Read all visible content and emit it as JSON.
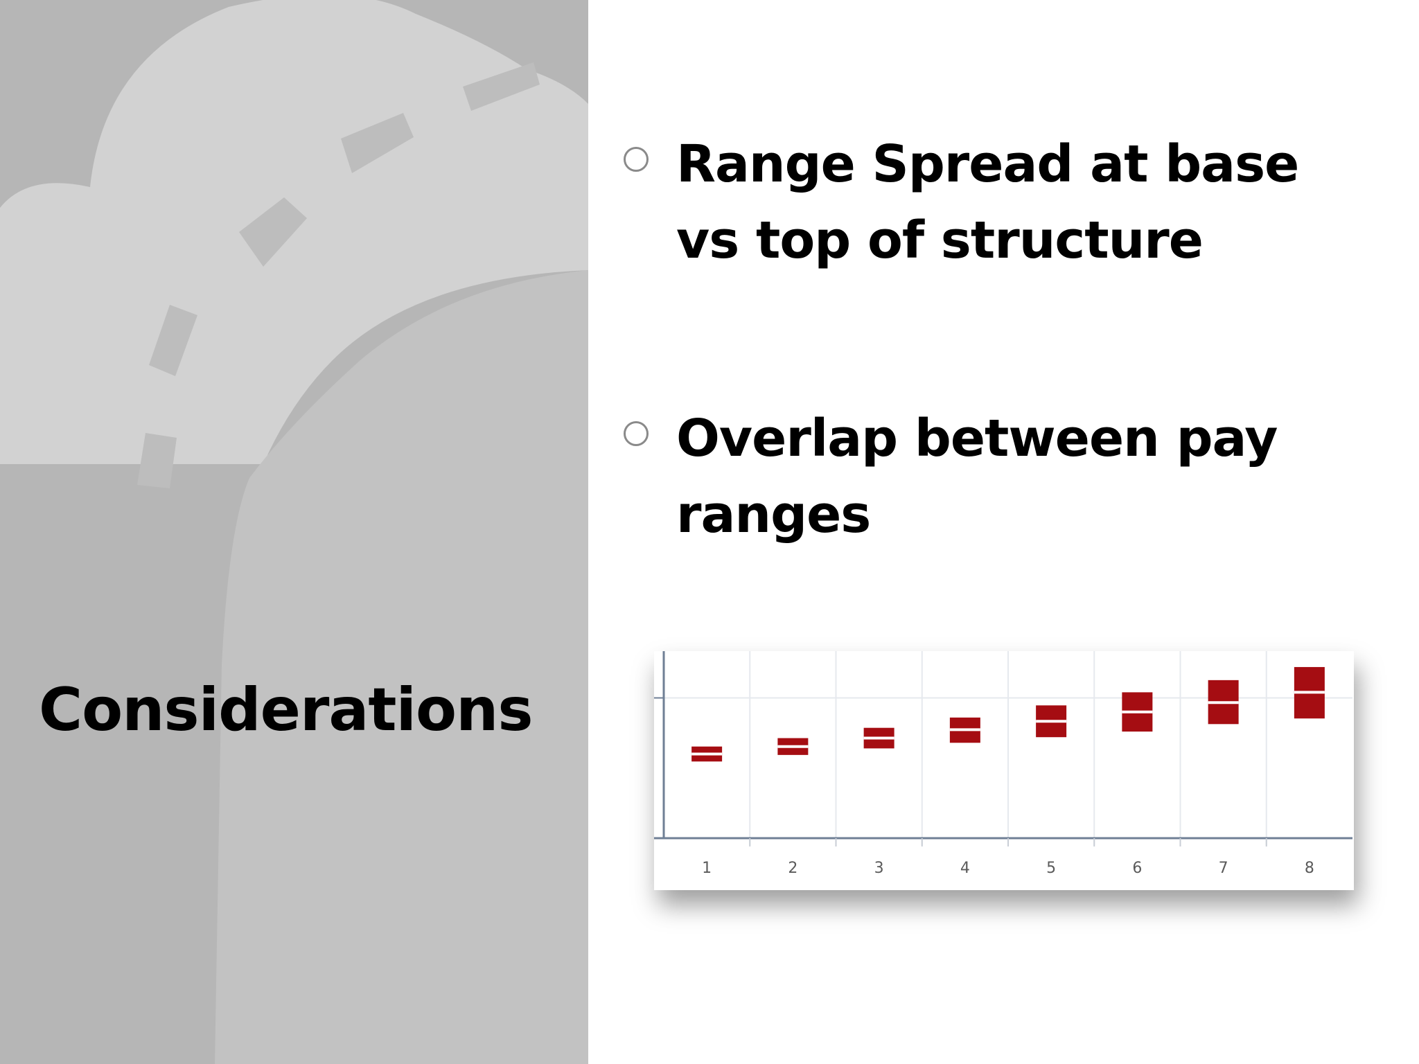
{
  "slide": {
    "title": "Considerations",
    "bullets": [
      {
        "text": "Range Spread at base vs top of structure"
      },
      {
        "text": "Overlap between pay ranges"
      }
    ]
  },
  "colors": {
    "left_panel": "#b6b6b6",
    "range_bar": "#a50d12",
    "axis": "#6f7f95",
    "grid": "#e6e9ee",
    "bullet_marker": "#8a8a8a"
  },
  "chart_data": {
    "type": "bar",
    "subtype": "floating-range",
    "categories": [
      "1",
      "2",
      "3",
      "4",
      "5",
      "6",
      "7",
      "8"
    ],
    "series": [
      {
        "values_min": [
          0.82,
          0.89,
          0.96,
          1.02,
          1.08,
          1.14,
          1.22,
          1.28
        ],
        "values_mid": [
          0.9,
          0.98,
          1.07,
          1.16,
          1.25,
          1.35,
          1.45,
          1.56
        ],
        "values_max": [
          0.98,
          1.07,
          1.18,
          1.29,
          1.42,
          1.56,
          1.69,
          1.83
        ]
      }
    ],
    "ylim": [
      0,
      2
    ],
    "grid": true,
    "title": "",
    "xlabel": "",
    "ylabel": ""
  }
}
